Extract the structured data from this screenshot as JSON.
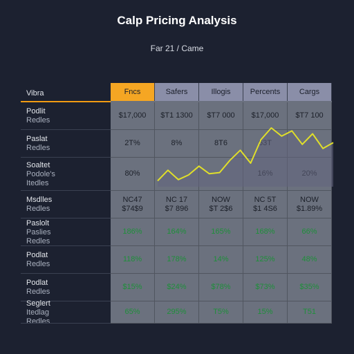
{
  "chart_data": {
    "type": "table",
    "title": "Calp Pricing Analysis",
    "subtitle": "Far 21 / Came",
    "corner_label": "Vibra",
    "columns": [
      {
        "label": "Fncs",
        "color": "#f5a623"
      },
      {
        "label": "Safers",
        "color": "#8a8ea8"
      },
      {
        "label": "Illogis",
        "color": "#8a8ea8"
      },
      {
        "label": "Percents",
        "color": "#8a8ea8"
      },
      {
        "label": "Cargs",
        "color": "#8a8ea8"
      }
    ],
    "rows": [
      {
        "label": [
          "Podlit",
          "Redles"
        ],
        "cells": [
          [
            "$17,000"
          ],
          [
            "$T1 1300"
          ],
          [
            "$T7 000"
          ],
          [
            "$17,000"
          ],
          [
            "$T7 100"
          ]
        ],
        "green": false
      },
      {
        "label": [
          "Paslat",
          "Redles"
        ],
        "cells": [
          [
            "2T%"
          ],
          [
            "8%"
          ],
          [
            "8T6"
          ],
          [
            "63T"
          ],
          [
            ""
          ]
        ],
        "green": false
      },
      {
        "label": [
          "Soaltet",
          "Podole's",
          "Itedles"
        ],
        "cells": [
          [
            "80%"
          ],
          [
            ""
          ],
          [
            ""
          ],
          [
            "16%"
          ],
          [
            "20%"
          ]
        ],
        "green": false
      },
      {
        "label": [
          "Msdlles",
          "Redles"
        ],
        "cells": [
          [
            "NC47",
            "$74$9"
          ],
          [
            "NC 17",
            "$7 896"
          ],
          [
            "NOW",
            "$T 2$6"
          ],
          [
            "NC 5T",
            "$1 4S6"
          ],
          [
            "NOW",
            "$1.89%"
          ]
        ],
        "green": false
      },
      {
        "label": [
          "Paslolt",
          "Paslies",
          "Redles"
        ],
        "cells": [
          [
            "186%"
          ],
          [
            "164%"
          ],
          [
            "165%"
          ],
          [
            "168%"
          ],
          [
            "66%"
          ]
        ],
        "green": true
      },
      {
        "label": [
          "Podlat",
          "Redles"
        ],
        "cells": [
          [
            "118%"
          ],
          [
            "178%"
          ],
          [
            "14%"
          ],
          [
            "125%"
          ],
          [
            "48%"
          ]
        ],
        "green": true
      },
      {
        "label": [
          "Podlat",
          "Redles"
        ],
        "cells": [
          [
            "$15%"
          ],
          [
            "$24%"
          ],
          [
            "$78%"
          ],
          [
            "$73%"
          ],
          [
            "$35%"
          ]
        ],
        "green": true
      },
      {
        "label": [
          "Seglert",
          "Itedlag",
          "Redles"
        ],
        "cells": [
          [
            "65%"
          ],
          [
            "295%"
          ],
          [
            "T5%"
          ],
          [
            "15%"
          ],
          [
            "T51"
          ]
        ],
        "green": true
      }
    ],
    "overlay_line": {
      "series": [
        0.1,
        0.28,
        0.12,
        0.2,
        0.35,
        0.22,
        0.24,
        0.45,
        0.62,
        0.4,
        0.8,
        1.0,
        0.86,
        0.95,
        0.72,
        0.9,
        0.65,
        0.75
      ],
      "color": "#e0df2a",
      "fill": "#62647e"
    }
  }
}
